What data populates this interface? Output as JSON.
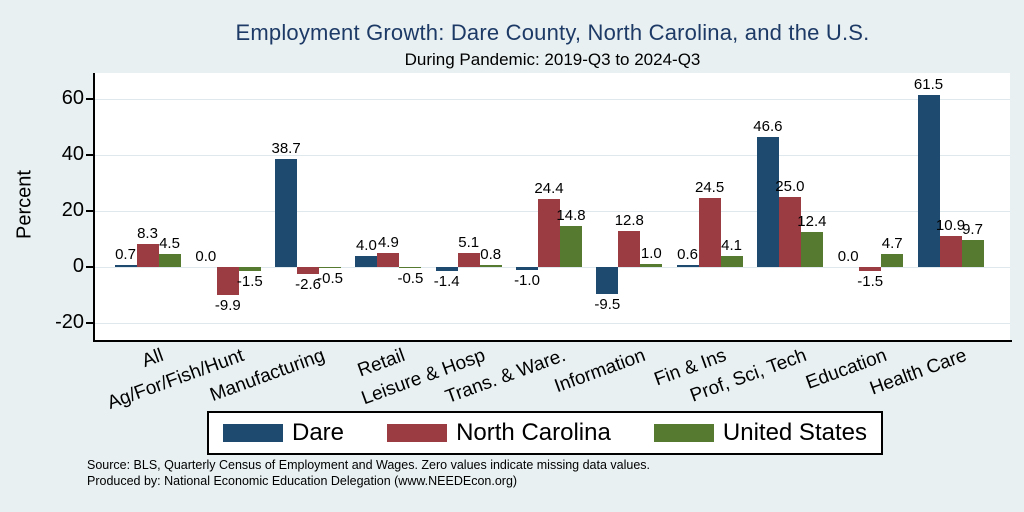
{
  "colors": {
    "background": "#e8f0f2",
    "plot_background": "#ffffff",
    "gridline": "#dfe9ed",
    "axis_line": "#000000",
    "title_text": "#1d3a66",
    "dare": "#1f4a6f",
    "north_carolina": "#9b3b42",
    "united_states": "#567a2f"
  },
  "chart_data": {
    "type": "bar",
    "title": "Employment Growth: Dare County, North Carolina, and the U.S.",
    "subtitle": "During Pandemic: 2019-Q3 to 2024-Q3",
    "ylabel": "Percent",
    "ylim": [
      -26,
      69
    ],
    "yticks": [
      -20,
      0,
      20,
      40,
      60
    ],
    "grid": true,
    "legend_position": "bottom",
    "value_labels": true,
    "value_label_decimals": 1,
    "categories": [
      "All",
      "Ag/For/Fish/Hunt",
      "Manufacturing",
      "Retail",
      "Leisure & Hosp",
      "Trans. & Ware.",
      "Information",
      "Fin & Ins",
      "Prof, Sci, Tech",
      "Education",
      "Health Care"
    ],
    "series": [
      {
        "name": "Dare",
        "color": "#1f4a6f",
        "values": [
          0.7,
          0.0,
          38.7,
          4.0,
          -1.4,
          -1.0,
          -9.5,
          0.6,
          46.6,
          0.0,
          61.5
        ]
      },
      {
        "name": "North Carolina",
        "color": "#9b3b42",
        "values": [
          8.3,
          -9.9,
          -2.6,
          4.9,
          5.1,
          24.4,
          12.8,
          24.5,
          25.0,
          -1.5,
          10.9
        ]
      },
      {
        "name": "United States",
        "color": "#567a2f",
        "values": [
          4.5,
          -1.5,
          -0.5,
          -0.5,
          0.8,
          14.8,
          1.0,
          4.1,
          12.4,
          4.7,
          9.7
        ]
      }
    ]
  },
  "footer": {
    "line1": "Source: BLS, Quarterly Census of Employment and Wages. Zero values indicate missing data values.",
    "line2": "Produced by: National Economic Education Delegation (www.NEEDEcon.org)"
  }
}
